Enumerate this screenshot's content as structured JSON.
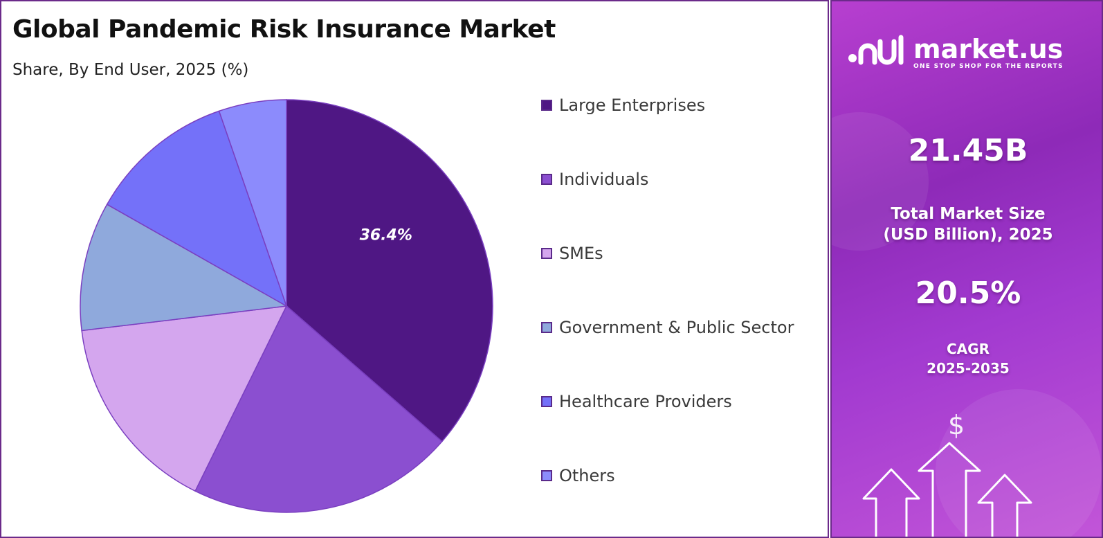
{
  "chart_data": {
    "type": "pie",
    "title": "Global Pandemic Risk Insurance Market",
    "subtitle": "Share, By End User, 2025 (%)",
    "categories": [
      "Large Enterprises",
      "Individuals",
      "SMEs",
      "Government & Public Sector",
      "Healthcare Providers",
      "Others"
    ],
    "values": [
      36.4,
      20.9,
      15.8,
      10.1,
      11.5,
      5.3
    ],
    "colors": [
      "#4f1784",
      "#8b4fd0",
      "#d4a6ee",
      "#8fa9dc",
      "#7471f9",
      "#8c8bfc"
    ],
    "data_labels": [
      {
        "category": "Large Enterprises",
        "text": "36.4%"
      }
    ],
    "legend_position": "right"
  },
  "side_panel": {
    "brand_name": "market.us",
    "brand_tagline": "ONE STOP SHOP FOR THE REPORTS",
    "market_size_value": "21.45B",
    "market_size_label_line1": "Total Market Size",
    "market_size_label_line2": "(USD Billion), 2025",
    "cagr_value": "20.5%",
    "cagr_label": "CAGR",
    "cagr_period": "2025-2035",
    "dollar_symbol": "$",
    "icons": [
      "market-us-logo-icon",
      "dollar-icon",
      "growth-arrows-icon"
    ]
  }
}
